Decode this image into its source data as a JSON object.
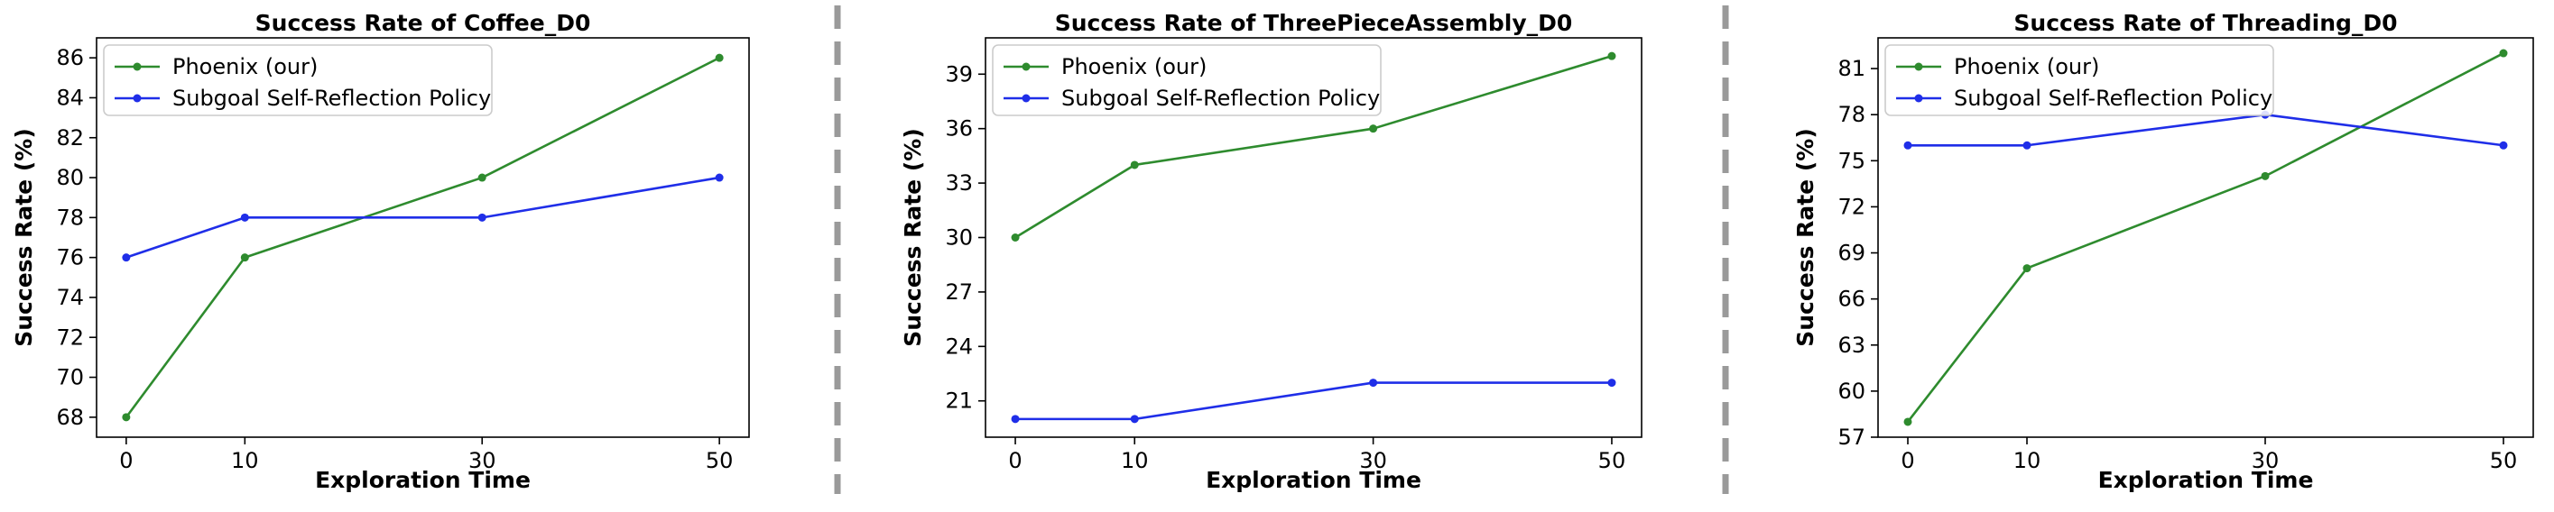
{
  "colors": {
    "phoenix": "#2e8b2e",
    "subgoal": "#1f2ee8"
  },
  "chart_data": [
    {
      "type": "line",
      "title": "Success Rate of Coffee_D0",
      "xlabel": "Exploration Time",
      "ylabel": "Success Rate (%)",
      "x": [
        0,
        10,
        30,
        50
      ],
      "xlim": [
        -2.5,
        52.5
      ],
      "ylim": [
        67,
        87
      ],
      "yticks": [
        68,
        70,
        72,
        74,
        76,
        78,
        80,
        82,
        84,
        86
      ],
      "legend_loc": "top-left",
      "grid": false,
      "series": [
        {
          "name": "Phoenix (our)",
          "values": [
            68,
            76,
            80,
            86
          ],
          "color": "phoenix"
        },
        {
          "name": "Subgoal Self-Reflection Policy",
          "values": [
            76,
            78,
            78,
            80
          ],
          "color": "subgoal"
        }
      ]
    },
    {
      "type": "line",
      "title": "Success Rate of ThreePieceAssembly_D0",
      "xlabel": "Exploration Time",
      "ylabel": "Success Rate (%)",
      "x": [
        0,
        10,
        30,
        50
      ],
      "xlim": [
        -2.5,
        52.5
      ],
      "ylim": [
        19,
        41
      ],
      "yticks": [
        21,
        24,
        27,
        30,
        33,
        36,
        39
      ],
      "legend_loc": "top-left",
      "grid": false,
      "series": [
        {
          "name": "Phoenix (our)",
          "values": [
            30,
            34,
            36,
            40
          ],
          "color": "phoenix"
        },
        {
          "name": "Subgoal Self-Reflection Policy",
          "values": [
            20,
            20,
            22,
            22
          ],
          "color": "subgoal"
        }
      ]
    },
    {
      "type": "line",
      "title": "Success Rate of Threading_D0",
      "xlabel": "Exploration Time",
      "ylabel": "Success Rate (%)",
      "x": [
        0,
        10,
        30,
        50
      ],
      "xlim": [
        -2.5,
        52.5
      ],
      "ylim": [
        57,
        83
      ],
      "yticks": [
        57,
        60,
        63,
        66,
        69,
        72,
        75,
        78,
        81
      ],
      "legend_loc": "top-left",
      "grid": false,
      "series": [
        {
          "name": "Phoenix (our)",
          "values": [
            58,
            68,
            74,
            82
          ],
          "color": "phoenix"
        },
        {
          "name": "Subgoal Self-Reflection Policy",
          "values": [
            76,
            76,
            78,
            76
          ],
          "color": "subgoal"
        }
      ]
    }
  ]
}
